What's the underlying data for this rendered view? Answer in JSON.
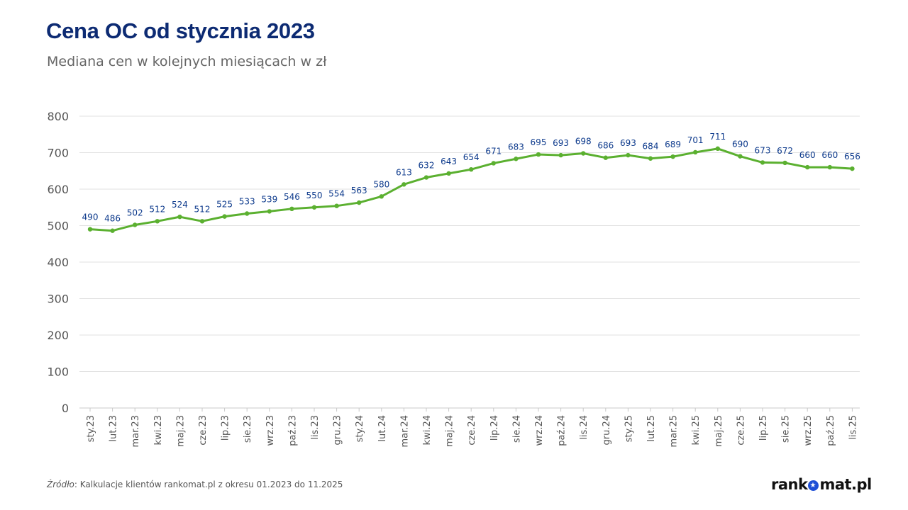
{
  "header": {
    "title": "Cena OC od stycznia 2023",
    "subtitle": "Mediana cen w kolejnych miesiącach w zł"
  },
  "footer": {
    "source_label": "Źródło",
    "source_text": ": Kalkulacje klientów rankomat.pl z okresu 01.2023 do 11.2025",
    "logo_text_left": "rank",
    "logo_text_right": "mat.pl"
  },
  "colors": {
    "line": "#5bb030",
    "label": "#0d3a8c",
    "axis_text": "#555555",
    "title": "#0d2b73",
    "grid": "#e2e2e2"
  },
  "chart_data": {
    "type": "line",
    "title": "Cena OC od stycznia 2023",
    "subtitle": "Mediana cen w kolejnych miesiącach w zł",
    "xlabel": "",
    "ylabel": "",
    "ylim": [
      0,
      800
    ],
    "yticks": [
      0,
      100,
      200,
      300,
      400,
      500,
      600,
      700,
      800
    ],
    "grid": true,
    "legend": "none",
    "categories": [
      "sty.23",
      "lut.23",
      "mar.23",
      "kwi.23",
      "maj.23",
      "cze.23",
      "lip.23",
      "sie.23",
      "wrz.23",
      "paź.23",
      "lis.23",
      "gru.23",
      "sty.24",
      "lut.24",
      "mar.24",
      "kwi.24",
      "maj.24",
      "cze.24",
      "lip.24",
      "sie.24",
      "wrz.24",
      "paź.24",
      "lis.24",
      "gru.24",
      "sty.25",
      "lut.25",
      "mar.25",
      "kwi.25",
      "maj.25",
      "cze.25",
      "lip.25",
      "sie.25",
      "wrz.25",
      "paź.25",
      "lis.25"
    ],
    "values": [
      490,
      486,
      502,
      512,
      524,
      512,
      525,
      533,
      539,
      546,
      550,
      554,
      563,
      580,
      613,
      632,
      643,
      654,
      671,
      683,
      695,
      693,
      698,
      686,
      693,
      684,
      689,
      701,
      711,
      690,
      673,
      672,
      660,
      660,
      656
    ]
  }
}
